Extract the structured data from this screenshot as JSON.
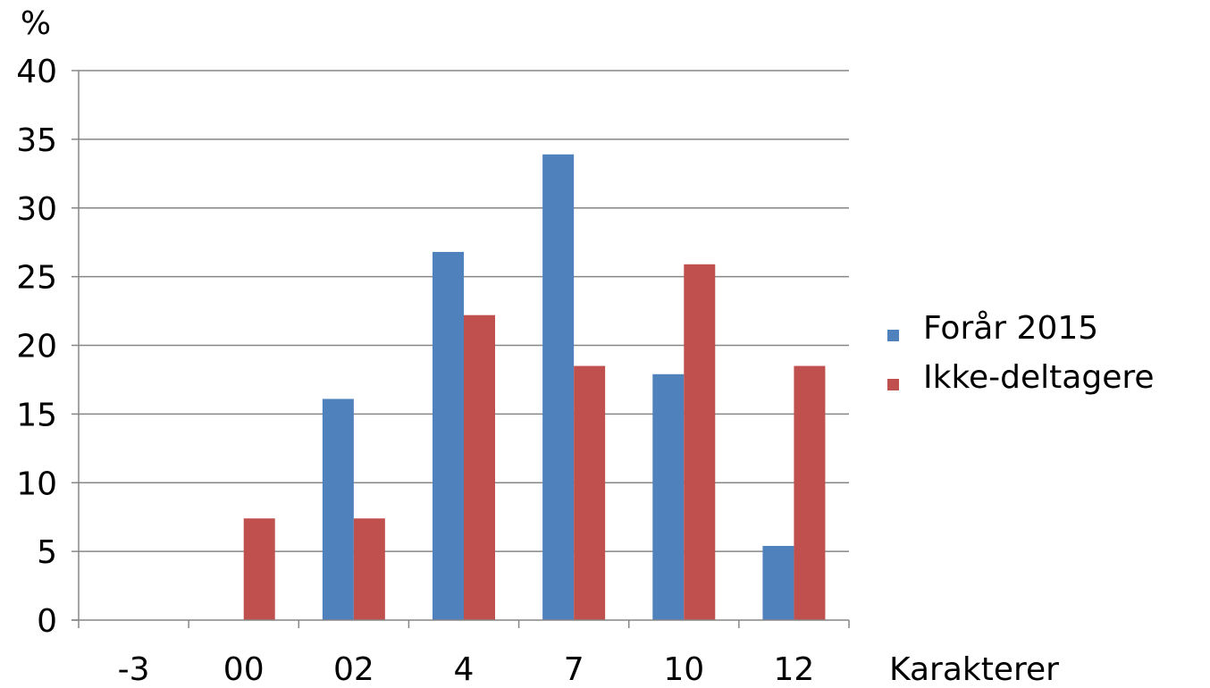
{
  "chart_data": {
    "type": "bar",
    "categories": [
      "-3",
      "00",
      "02",
      "4",
      "7",
      "10",
      "12"
    ],
    "series": [
      {
        "name": "Forår 2015",
        "values": [
          0,
          0,
          16.1,
          26.8,
          33.9,
          17.9,
          5.4
        ],
        "color": "#4F81BD"
      },
      {
        "name": "Ikke-deltagere",
        "values": [
          0,
          7.4,
          7.4,
          22.2,
          18.5,
          25.9,
          18.5
        ],
        "color": "#C0504D"
      }
    ],
    "ylabel": "%",
    "xlabel": "Karakterer",
    "ylim": [
      0,
      40
    ],
    "yticks": [
      "0",
      "5",
      "10",
      "15",
      "20",
      "25",
      "30",
      "35",
      "40"
    ],
    "grid": true,
    "legend_position": "right"
  }
}
